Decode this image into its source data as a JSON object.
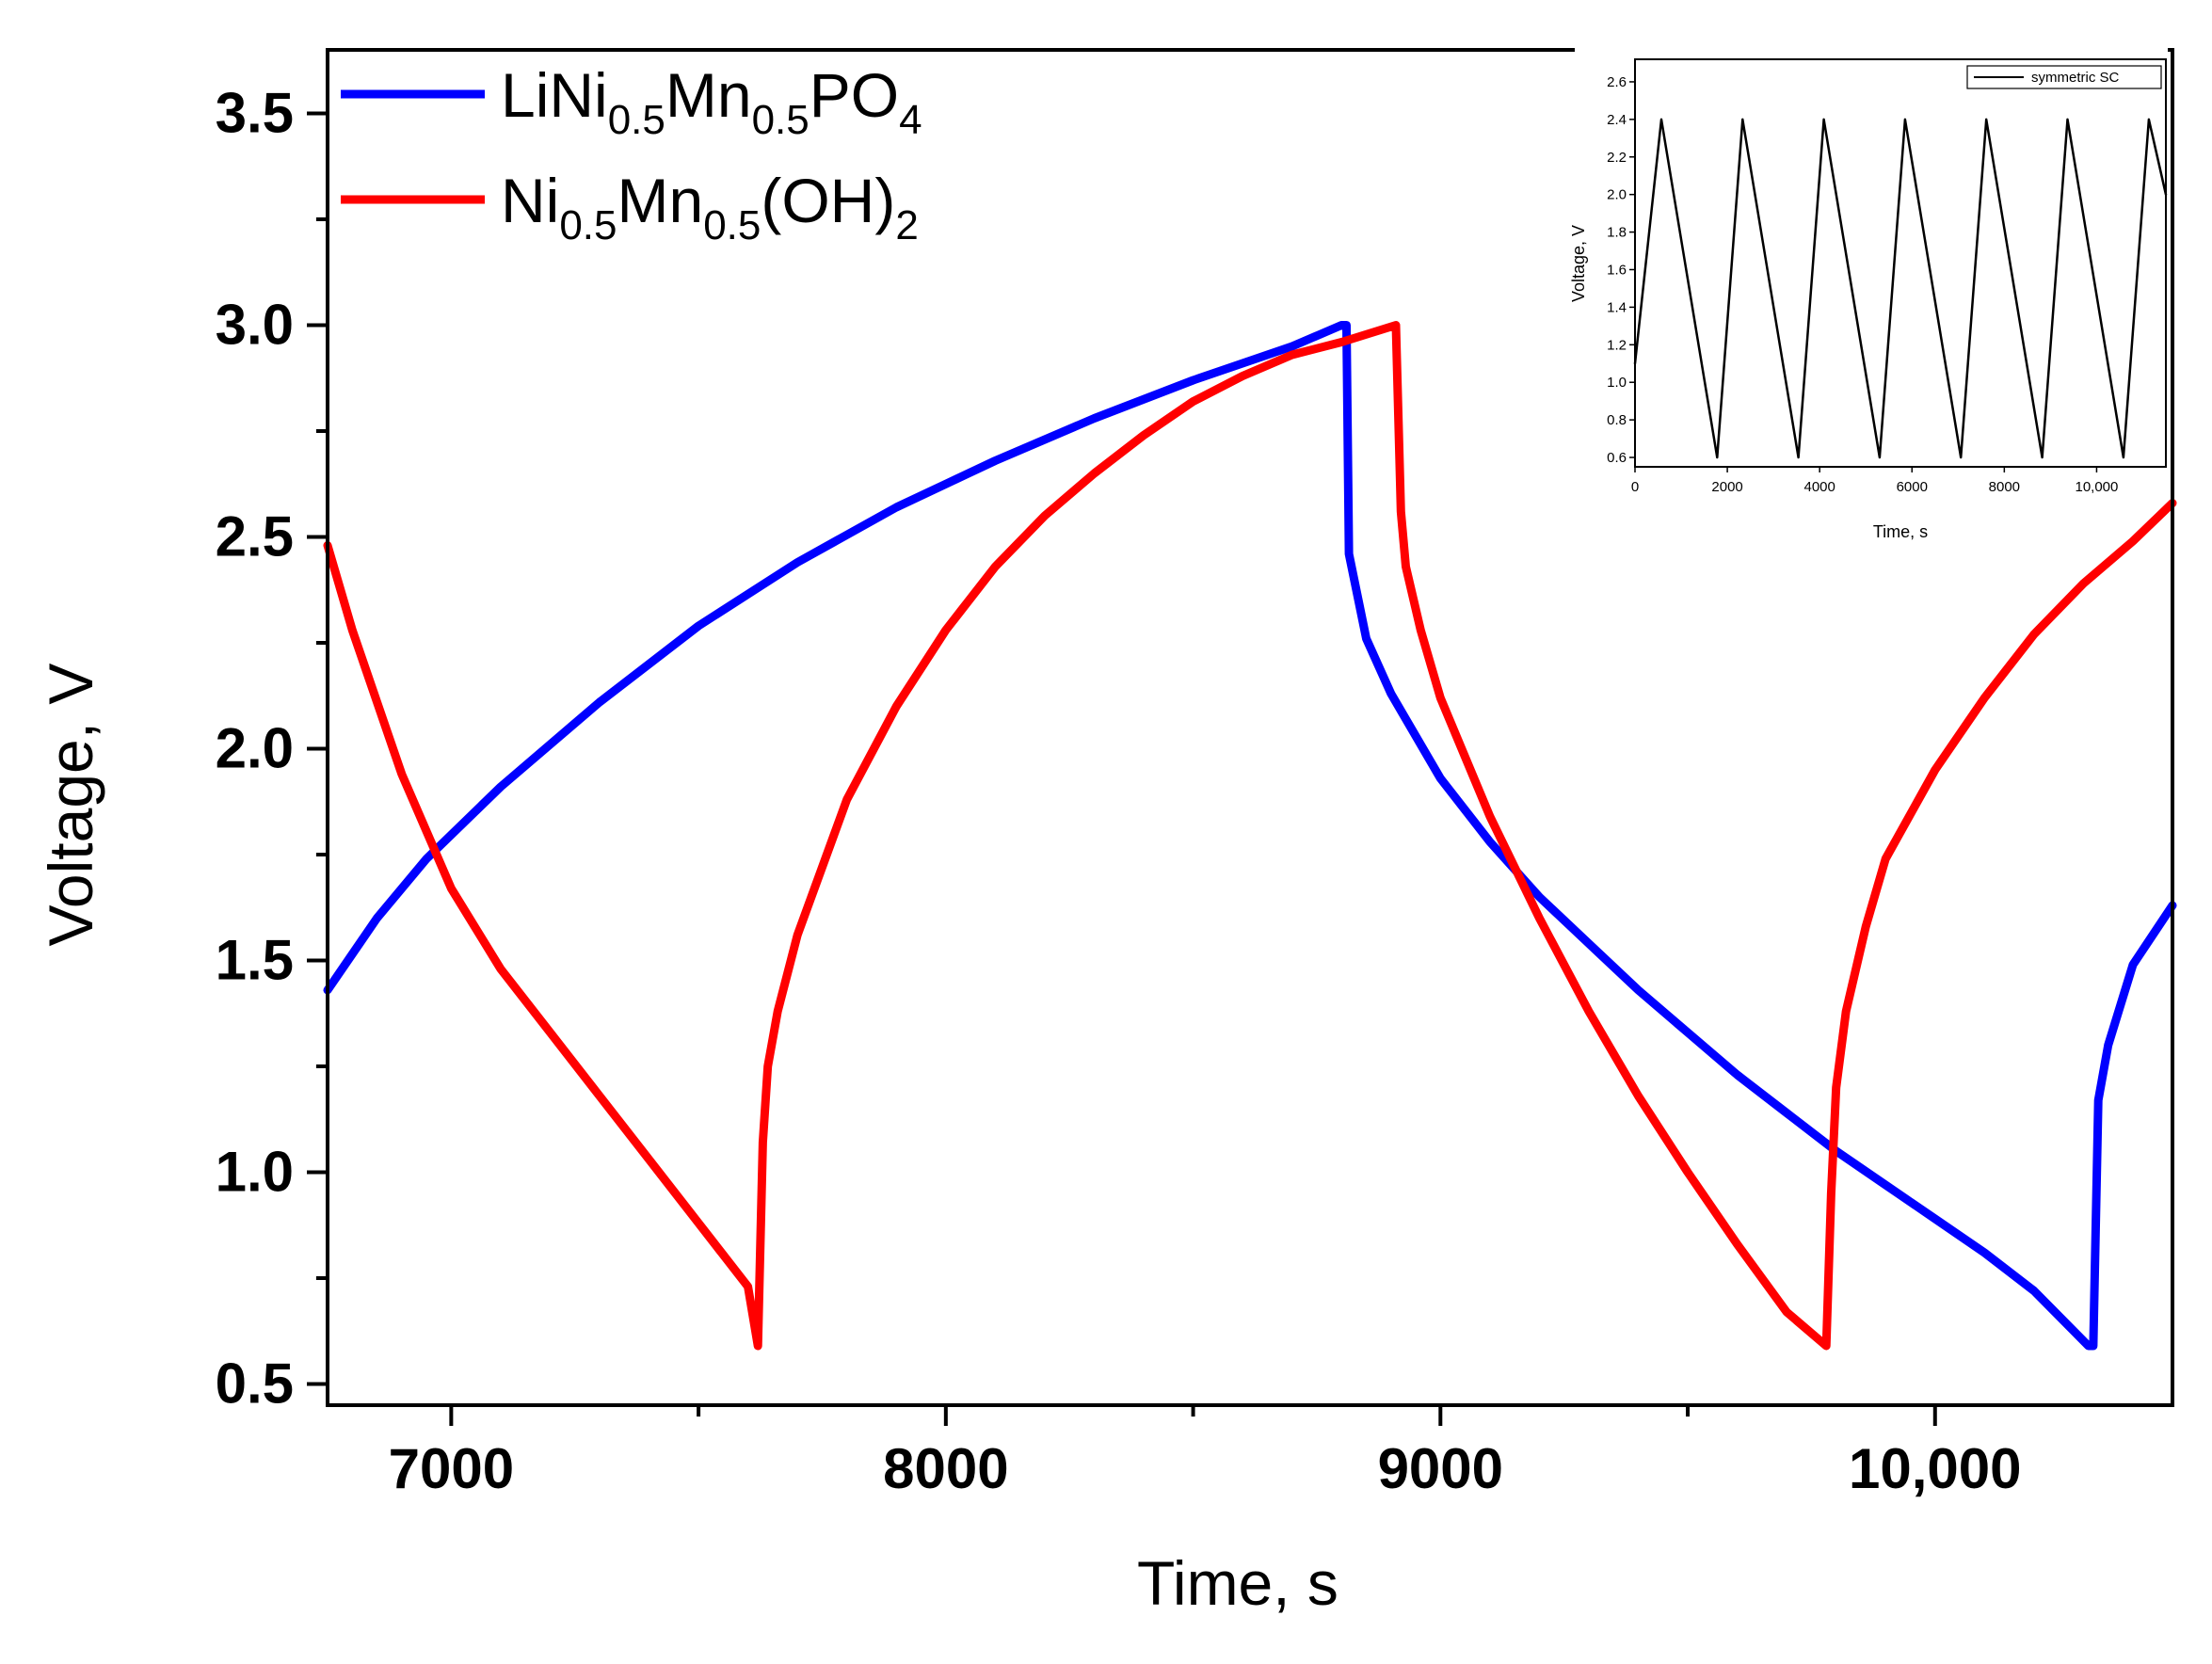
{
  "chart_data": [
    {
      "type": "line",
      "xlabel": "Time, s",
      "ylabel": "Voltage, V",
      "xlim": [
        6750,
        10480
      ],
      "ylim": [
        0.45,
        3.65
      ],
      "xticks": [
        7000,
        8000,
        9000,
        10000
      ],
      "xtick_labels": [
        "7000",
        "8000",
        "9000",
        "10,000"
      ],
      "yticks": [
        0.5,
        1.0,
        1.5,
        2.0,
        2.5,
        3.0,
        3.5
      ],
      "ytick_labels": [
        "0.5",
        "1.0",
        "1.5",
        "2.0",
        "2.5",
        "3.0",
        "3.5"
      ],
      "legend_position": "top-left",
      "series": [
        {
          "name": "LiNi0.5Mn0.5PO4",
          "legend_parts": [
            {
              "text": "LiNi",
              "sub": false
            },
            {
              "text": "0.5",
              "sub": true
            },
            {
              "text": "Mn",
              "sub": false
            },
            {
              "text": "0.5",
              "sub": true
            },
            {
              "text": "PO",
              "sub": false
            },
            {
              "text": "4",
              "sub": true
            }
          ],
          "color": "#0000ff",
          "x": [
            6750,
            6850,
            6950,
            7100,
            7300,
            7500,
            7700,
            7900,
            8100,
            8300,
            8500,
            8700,
            8800,
            8810,
            8815,
            8850,
            8900,
            9000,
            9100,
            9200,
            9300,
            9400,
            9500,
            9600,
            9700,
            9800,
            9900,
            10000,
            10100,
            10200,
            10310,
            10320,
            10330,
            10350,
            10400,
            10480
          ],
          "y": [
            1.43,
            1.6,
            1.74,
            1.91,
            2.11,
            2.29,
            2.44,
            2.57,
            2.68,
            2.78,
            2.87,
            2.95,
            3.0,
            3.0,
            2.46,
            2.26,
            2.13,
            1.93,
            1.78,
            1.65,
            1.54,
            1.43,
            1.33,
            1.23,
            1.14,
            1.05,
            0.97,
            0.89,
            0.81,
            0.72,
            0.59,
            0.59,
            1.17,
            1.3,
            1.49,
            1.63
          ]
        },
        {
          "name": "Ni0.5Mn0.5(OH)2",
          "legend_parts": [
            {
              "text": "Ni",
              "sub": false
            },
            {
              "text": "0.5",
              "sub": true
            },
            {
              "text": "Mn",
              "sub": false
            },
            {
              "text": "0.5",
              "sub": true
            },
            {
              "text": "(OH)",
              "sub": false
            },
            {
              "text": "2",
              "sub": true
            }
          ],
          "color": "#ff0000",
          "x": [
            6750,
            6800,
            6900,
            7000,
            7100,
            7200,
            7300,
            7400,
            7500,
            7600,
            7620,
            7630,
            7640,
            7660,
            7700,
            7800,
            7900,
            8000,
            8100,
            8200,
            8300,
            8400,
            8500,
            8600,
            8700,
            8800,
            8910,
            8920,
            8930,
            8960,
            9000,
            9100,
            9200,
            9300,
            9400,
            9500,
            9600,
            9700,
            9780,
            9790,
            9800,
            9820,
            9860,
            9900,
            10000,
            10100,
            10200,
            10300,
            10400,
            10480
          ],
          "y": [
            2.48,
            2.28,
            1.94,
            1.67,
            1.48,
            1.33,
            1.18,
            1.03,
            0.88,
            0.73,
            0.59,
            1.07,
            1.25,
            1.38,
            1.56,
            1.88,
            2.1,
            2.28,
            2.43,
            2.55,
            2.65,
            2.74,
            2.82,
            2.88,
            2.93,
            2.96,
            3.0,
            2.56,
            2.43,
            2.28,
            2.12,
            1.84,
            1.6,
            1.38,
            1.18,
            1.0,
            0.83,
            0.67,
            0.59,
            0.95,
            1.2,
            1.38,
            1.58,
            1.74,
            1.95,
            2.12,
            2.27,
            2.39,
            2.49,
            2.58
          ]
        }
      ]
    },
    {
      "type": "line",
      "xlabel": "Time, s",
      "ylabel": "Voltage, V",
      "xlim": [
        0,
        11500
      ],
      "ylim": [
        0.55,
        2.72
      ],
      "xticks": [
        0,
        2000,
        4000,
        6000,
        8000,
        10000
      ],
      "xtick_labels": [
        "0",
        "2000",
        "4000",
        "6000",
        "8000",
        "10,000"
      ],
      "yticks": [
        0.6,
        0.8,
        1.0,
        1.2,
        1.4,
        1.6,
        1.8,
        2.0,
        2.2,
        2.4,
        2.6
      ],
      "ytick_labels": [
        "0.6",
        "0.8",
        "1.0",
        "1.2",
        "1.4",
        "1.6",
        "1.8",
        "2.0",
        "2.2",
        "2.4",
        "2.6"
      ],
      "legend_position": "top-right",
      "series": [
        {
          "name": "symmetric SC",
          "color": "#000000",
          "x": [
            0,
            570,
            1780,
            2330,
            3540,
            4090,
            5300,
            5850,
            7060,
            7610,
            8820,
            9370,
            10580,
            11130,
            11500
          ],
          "y": [
            1.1,
            2.4,
            0.6,
            2.4,
            0.6,
            2.4,
            0.6,
            2.4,
            0.6,
            2.4,
            0.6,
            2.4,
            0.6,
            2.4,
            2.0
          ]
        }
      ]
    }
  ]
}
